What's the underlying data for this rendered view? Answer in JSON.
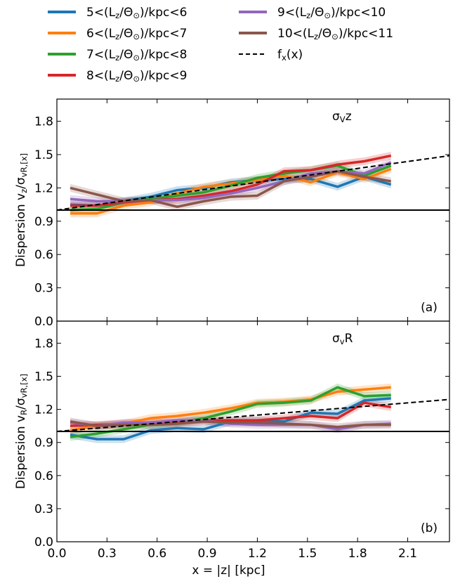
{
  "legend": {
    "items": [
      {
        "label": "5<(L_z/Θ_⊙)/kpc<6",
        "color": "#1f77b4",
        "style": "solid"
      },
      {
        "label": "6<(L_z/Θ_⊙)/kpc<7",
        "color": "#ff7f0e",
        "style": "solid"
      },
      {
        "label": "7<(L_z/Θ_⊙)/kpc<8",
        "color": "#2ca02c",
        "style": "solid"
      },
      {
        "label": "8<(L_z/Θ_⊙)/kpc<9",
        "color": "#d62728",
        "style": "solid"
      },
      {
        "label": "9<(L_z/Θ_⊙)/kpc<10",
        "color": "#9467bd",
        "style": "solid"
      },
      {
        "label": "10<(L_z/Θ_⊙)/kpc<11",
        "color": "#8c564b",
        "style": "solid"
      },
      {
        "label": "f_x(x)",
        "color": "#000000",
        "style": "dashed"
      }
    ]
  },
  "chart_data": [
    {
      "type": "line",
      "panel_label": "(a)",
      "annotation": "σ_Vz",
      "ylabel": "Dispersion v_z/σ_{v_R,[x]}",
      "xlabel": "",
      "xlim": [
        0.0,
        2.35
      ],
      "ylim": [
        0.0,
        2.0
      ],
      "xticks": [
        "0.0",
        "0.3",
        "0.6",
        "0.9",
        "1.2",
        "1.5",
        "1.8",
        "2.1"
      ],
      "yticks": [
        "0.0",
        "0.3",
        "0.6",
        "0.9",
        "1.2",
        "1.5",
        "1.8"
      ],
      "reference_line": 1.0,
      "fit": {
        "name": "f_x(x)",
        "x": [
          0.0,
          2.35
        ],
        "y": [
          1.0,
          1.49
        ]
      },
      "series": [
        {
          "name": "5<(L_z/Θ_⊙)/kpc<6",
          "x": [
            0.08,
            0.24,
            0.4,
            0.56,
            0.72,
            0.88,
            1.04,
            1.2,
            1.36,
            1.52,
            1.68,
            1.84,
            2.0
          ],
          "y": [
            1.05,
            1.04,
            1.08,
            1.12,
            1.18,
            1.2,
            1.25,
            1.27,
            1.28,
            1.28,
            1.21,
            1.3,
            1.23
          ]
        },
        {
          "name": "6<(L_z/Θ_⊙)/kpc<7",
          "x": [
            0.08,
            0.24,
            0.4,
            0.56,
            0.72,
            0.88,
            1.04,
            1.2,
            1.36,
            1.52,
            1.68,
            1.84,
            2.0
          ],
          "y": [
            0.97,
            0.97,
            1.04,
            1.07,
            1.15,
            1.21,
            1.24,
            1.27,
            1.31,
            1.25,
            1.34,
            1.28,
            1.37
          ]
        },
        {
          "name": "7<(L_z/Θ_⊙)/kpc<8",
          "x": [
            0.08,
            0.24,
            0.4,
            0.56,
            0.72,
            0.88,
            1.04,
            1.2,
            1.36,
            1.52,
            1.68,
            1.84,
            2.0
          ],
          "y": [
            1.0,
            1.01,
            1.07,
            1.1,
            1.13,
            1.16,
            1.22,
            1.29,
            1.33,
            1.36,
            1.4,
            1.31,
            1.4
          ]
        },
        {
          "name": "8<(L_z/Θ_⊙)/kpc<9",
          "x": [
            0.08,
            0.24,
            0.4,
            0.56,
            0.72,
            0.88,
            1.04,
            1.2,
            1.36,
            1.52,
            1.68,
            1.84,
            2.0
          ],
          "y": [
            1.04,
            1.04,
            1.07,
            1.09,
            1.1,
            1.13,
            1.17,
            1.23,
            1.35,
            1.36,
            1.41,
            1.44,
            1.49
          ]
        },
        {
          "name": "9<(L_z/Θ_⊙)/kpc<10",
          "x": [
            0.08,
            0.24,
            0.4,
            0.56,
            0.72,
            0.88,
            1.04,
            1.2,
            1.36,
            1.52,
            1.68,
            1.84,
            2.0
          ],
          "y": [
            1.1,
            1.08,
            1.08,
            1.09,
            1.09,
            1.11,
            1.15,
            1.2,
            1.26,
            1.33,
            1.35,
            1.33,
            1.43
          ]
        },
        {
          "name": "10<(L_z/Θ_⊙)/kpc<11",
          "x": [
            0.08,
            0.24,
            0.4,
            0.56,
            0.72,
            0.88,
            1.04,
            1.2,
            1.36,
            1.52,
            1.68,
            1.84,
            2.0
          ],
          "y": [
            1.2,
            1.14,
            1.08,
            1.09,
            1.03,
            1.08,
            1.12,
            1.13,
            1.26,
            1.3,
            1.35,
            1.3,
            1.26
          ]
        }
      ]
    },
    {
      "type": "line",
      "panel_label": "(b)",
      "annotation": "σ_vR",
      "ylabel": "Dispersion v_R/σ_{v_R,[x]}",
      "xlabel": "x = |z| [kpc]",
      "xlim": [
        0.0,
        2.35
      ],
      "ylim": [
        0.0,
        2.0
      ],
      "xticks": [
        "0.0",
        "0.3",
        "0.6",
        "0.9",
        "1.2",
        "1.5",
        "1.8",
        "2.1"
      ],
      "yticks": [
        "0.0",
        "0.3",
        "0.6",
        "0.9",
        "1.2",
        "1.5",
        "1.8"
      ],
      "reference_line": 1.0,
      "fit": {
        "name": "f_x(x)",
        "x": [
          0.0,
          2.35
        ],
        "y": [
          1.0,
          1.29
        ]
      },
      "series": [
        {
          "name": "5<(L_z/Θ_⊙)/kpc<6",
          "x": [
            0.08,
            0.24,
            0.4,
            0.56,
            0.72,
            0.88,
            1.04,
            1.2,
            1.36,
            1.52,
            1.68,
            1.84,
            2.0
          ],
          "y": [
            0.97,
            0.93,
            0.93,
            1.01,
            1.03,
            1.02,
            1.09,
            1.1,
            1.09,
            1.17,
            1.16,
            1.28,
            1.3
          ]
        },
        {
          "name": "6<(L_z/Θ_⊙)/kpc<7",
          "x": [
            0.08,
            0.24,
            0.4,
            0.56,
            0.72,
            0.88,
            1.04,
            1.2,
            1.36,
            1.52,
            1.68,
            1.84,
            2.0
          ],
          "y": [
            1.01,
            1.05,
            1.07,
            1.12,
            1.14,
            1.17,
            1.21,
            1.26,
            1.27,
            1.29,
            1.36,
            1.38,
            1.4
          ]
        },
        {
          "name": "7<(L_z/Θ_⊙)/kpc<8",
          "x": [
            0.08,
            0.24,
            0.4,
            0.56,
            0.72,
            0.88,
            1.04,
            1.2,
            1.36,
            1.52,
            1.68,
            1.84,
            2.0
          ],
          "y": [
            0.95,
            0.98,
            1.02,
            1.06,
            1.08,
            1.12,
            1.18,
            1.25,
            1.26,
            1.28,
            1.4,
            1.32,
            1.33
          ]
        },
        {
          "name": "8<(L_z/Θ_⊙)/kpc<9",
          "x": [
            0.08,
            0.24,
            0.4,
            0.56,
            0.72,
            0.88,
            1.04,
            1.2,
            1.36,
            1.52,
            1.68,
            1.84,
            2.0
          ],
          "y": [
            1.05,
            1.06,
            1.07,
            1.08,
            1.08,
            1.1,
            1.1,
            1.1,
            1.12,
            1.14,
            1.12,
            1.26,
            1.22
          ]
        },
        {
          "name": "9<(L_z/Θ_⊙)/kpc<10",
          "x": [
            0.08,
            0.24,
            0.4,
            0.56,
            0.72,
            0.88,
            1.04,
            1.2,
            1.36,
            1.52,
            1.68,
            1.84,
            2.0
          ],
          "y": [
            1.08,
            1.05,
            1.08,
            1.08,
            1.1,
            1.1,
            1.07,
            1.06,
            1.06,
            1.06,
            1.02,
            1.06,
            1.07
          ]
        },
        {
          "name": "10<(L_z/Θ_⊙)/kpc<11",
          "x": [
            0.08,
            0.24,
            0.4,
            0.56,
            0.72,
            0.88,
            1.04,
            1.2,
            1.36,
            1.52,
            1.68,
            1.84,
            2.0
          ],
          "y": [
            1.09,
            1.05,
            1.06,
            1.06,
            1.07,
            1.09,
            1.08,
            1.08,
            1.07,
            1.06,
            1.04,
            1.06,
            1.06
          ]
        }
      ]
    }
  ]
}
